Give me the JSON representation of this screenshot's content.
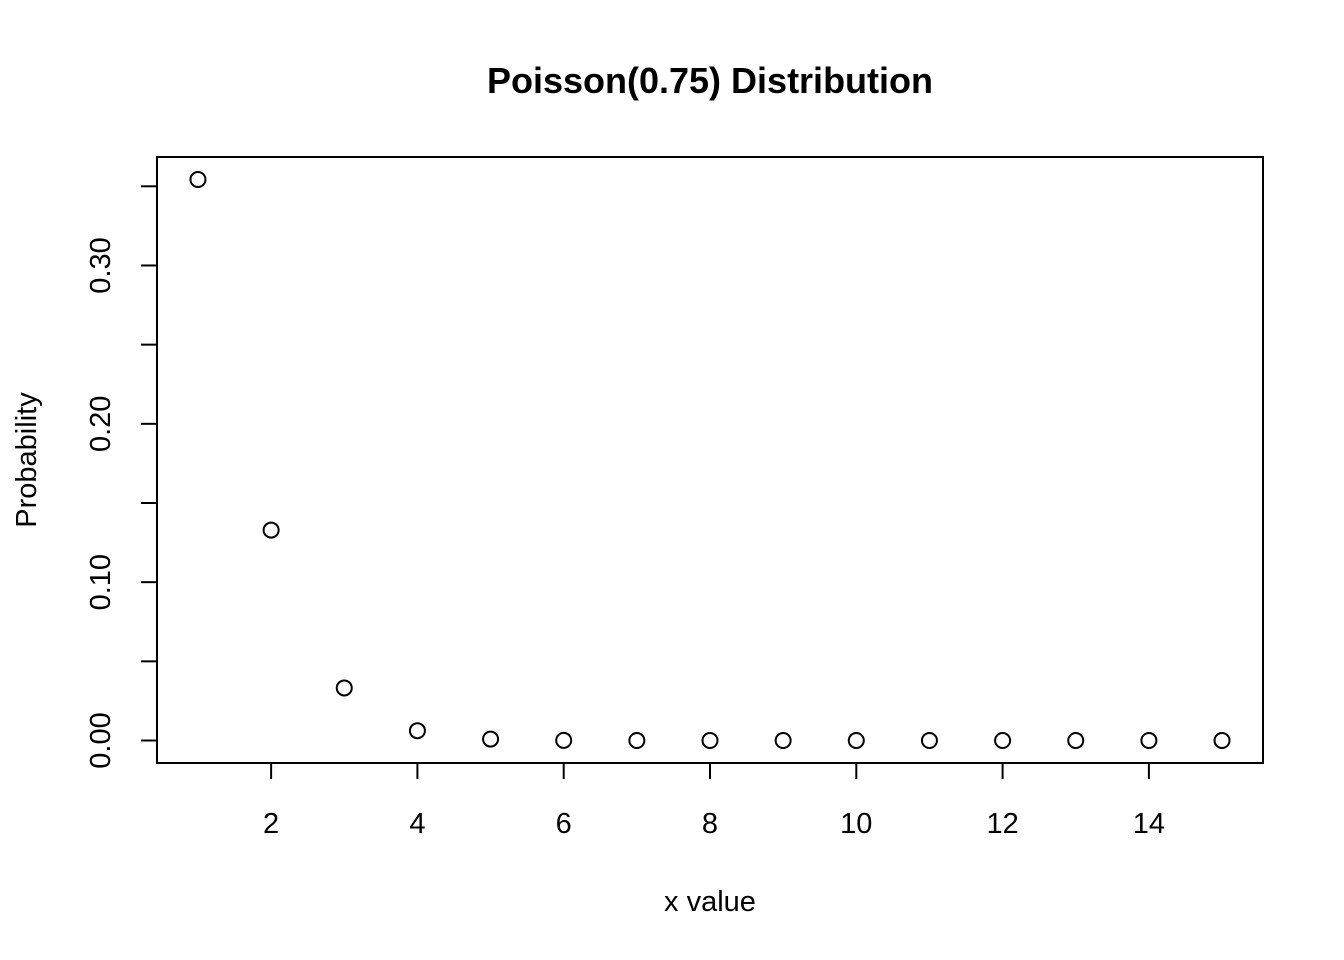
{
  "chart_data": {
    "type": "scatter",
    "title": "Poisson(0.75) Distribution",
    "xlabel": "x value",
    "ylabel": "Probability",
    "x": [
      1,
      2,
      3,
      4,
      5,
      6,
      7,
      8,
      9,
      10,
      11,
      12,
      13,
      14,
      15
    ],
    "y": [
      0.3543,
      0.1329,
      0.0332,
      0.0062,
      0.0009,
      0.0001,
      0.0,
      0.0,
      0.0,
      0.0,
      0.0,
      0.0,
      0.0,
      0.0,
      0.0
    ],
    "xlim": [
      0.44,
      15.56
    ],
    "ylim": [
      -0.0142,
      0.3685
    ],
    "x_ticks": [
      2,
      4,
      6,
      8,
      10,
      12,
      14
    ],
    "x_tick_labels": [
      "2",
      "4",
      "6",
      "8",
      "10",
      "12",
      "14"
    ],
    "y_ticks": [
      0.0,
      0.05,
      0.1,
      0.15,
      0.2,
      0.25,
      0.3,
      0.35
    ],
    "y_tick_labels": [
      "0.00",
      "",
      "0.10",
      "",
      "0.20",
      "",
      "0.30",
      ""
    ],
    "marker": "open-circle",
    "grid": false,
    "legend": "none"
  }
}
